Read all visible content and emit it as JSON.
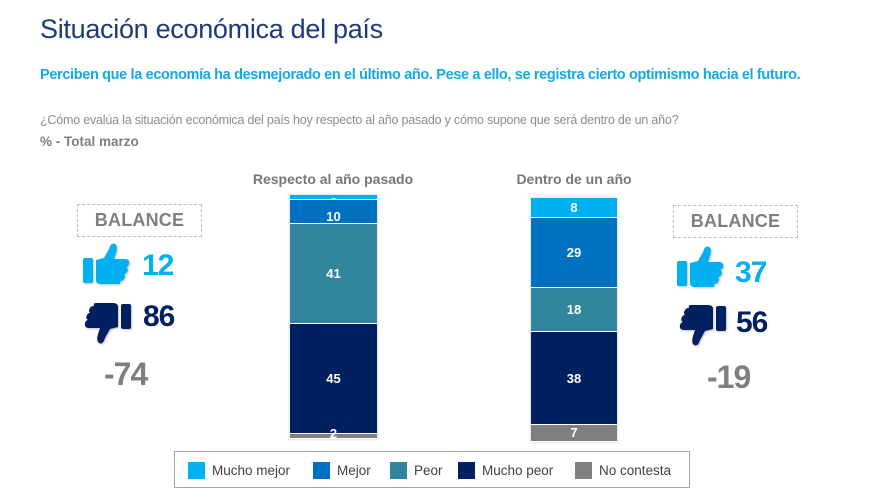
{
  "header": {
    "title": "Situación económica del país",
    "subtitle": "Perciben que la economía ha desmejorado en el último año. Pese a ello, se registra cierto optimismo hacia el futuro.",
    "question": "¿Cómo evalúa la situación económica del país hoy respecto al año pasado y cómo supone que será dentro de un año?",
    "unit": "% - Total marzo"
  },
  "balance_panels": [
    {
      "label": "BALANCE",
      "positive": "12",
      "negative": "86",
      "balance": "-74",
      "positive_icon": "thumbs-up-icon",
      "negative_icon": "thumbs-down-icon"
    },
    {
      "label": "BALANCE",
      "positive": "37",
      "negative": "56",
      "balance": "-19",
      "positive_icon": "thumbs-up-icon",
      "negative_icon": "thumbs-down-icon"
    }
  ],
  "colors": {
    "positive": "#00b0f0",
    "negative": "#002060",
    "balance": "#7f7f7f"
  },
  "chart_data": {
    "type": "bar",
    "stacked": true,
    "orientation": "vertical",
    "title": "",
    "xlabel": "",
    "ylabel": "%",
    "ylim": [
      0,
      100
    ],
    "grid": false,
    "legend_position": "bottom",
    "categories": [
      "Respecto al año pasado",
      "Dentro de un año"
    ],
    "series": [
      {
        "name": "Mucho mejor",
        "color": "#00b0f0",
        "values": [
          2,
          8
        ]
      },
      {
        "name": "Mejor",
        "color": "#0070c0",
        "values": [
          10,
          29
        ]
      },
      {
        "name": "Peor",
        "color": "#31859c",
        "values": [
          41,
          18
        ]
      },
      {
        "name": "Mucho peor",
        "color": "#002060",
        "values": [
          45,
          38
        ]
      },
      {
        "name": "No contesta",
        "color": "#7f7f7f",
        "values": [
          2,
          7
        ]
      }
    ]
  }
}
